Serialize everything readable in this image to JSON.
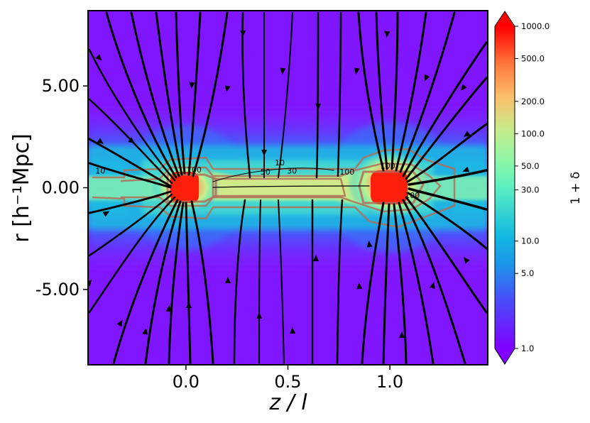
{
  "chart_data": {
    "type": "heatmap",
    "title": "",
    "xlabel": "z / l",
    "ylabel": "r [h⁻¹Mpc]",
    "colorbar_label": "1 + δ",
    "xlim": [
      -0.48,
      1.48
    ],
    "ylim": [
      -8.7,
      8.7
    ],
    "x_ticks": [
      {
        "v": 0.0,
        "label": "0.0"
      },
      {
        "v": 0.5,
        "label": "0.5"
      },
      {
        "v": 1.0,
        "label": "1.0"
      }
    ],
    "y_ticks": [
      {
        "v": 5.0,
        "label": "5.00"
      },
      {
        "v": 0.0,
        "label": "0.00"
      },
      {
        "v": -5.0,
        "label": "-5.00"
      }
    ],
    "colorbar": {
      "scale": "log",
      "range": [
        1.0,
        1000.0
      ],
      "colormap": "rainbow",
      "extend": "both",
      "ticks": [
        1.0,
        5.0,
        10.0,
        30.0,
        50.0,
        100.0,
        200.0,
        500.0,
        1000.0
      ],
      "tick_labels": [
        "1.0",
        "5.0",
        "10.0",
        "30.0",
        "50.0",
        "100.0",
        "200.0",
        "500.0",
        "1000.0"
      ]
    },
    "density_peaks": [
      {
        "z": 0.0,
        "r": 0.0,
        "value": 1000
      },
      {
        "z": 1.0,
        "r": 0.0,
        "value": 1000
      }
    ],
    "filament": {
      "z_range": [
        0.0,
        1.0
      ],
      "value_range": [
        50,
        100
      ]
    },
    "contour_levels": [
      10,
      30,
      50,
      100,
      200
    ],
    "contour_labels": [
      {
        "text": "10",
        "z": -0.42,
        "r": 0.7
      },
      {
        "text": "100",
        "z": 0.04,
        "r": 0.75
      },
      {
        "text": "50",
        "z": 0.39,
        "r": 0.65
      },
      {
        "text": "10",
        "z": 0.46,
        "r": 1.1
      },
      {
        "text": "30",
        "z": 0.52,
        "r": 0.7
      },
      {
        "text": "100",
        "z": 0.79,
        "r": 0.65
      },
      {
        "text": "100",
        "z": 0.99,
        "r": 0.95
      },
      {
        "text": "100",
        "z": 1.11,
        "r": -0.5
      }
    ],
    "streamlines": "velocity field lines converging onto the two nodes and the filament"
  }
}
